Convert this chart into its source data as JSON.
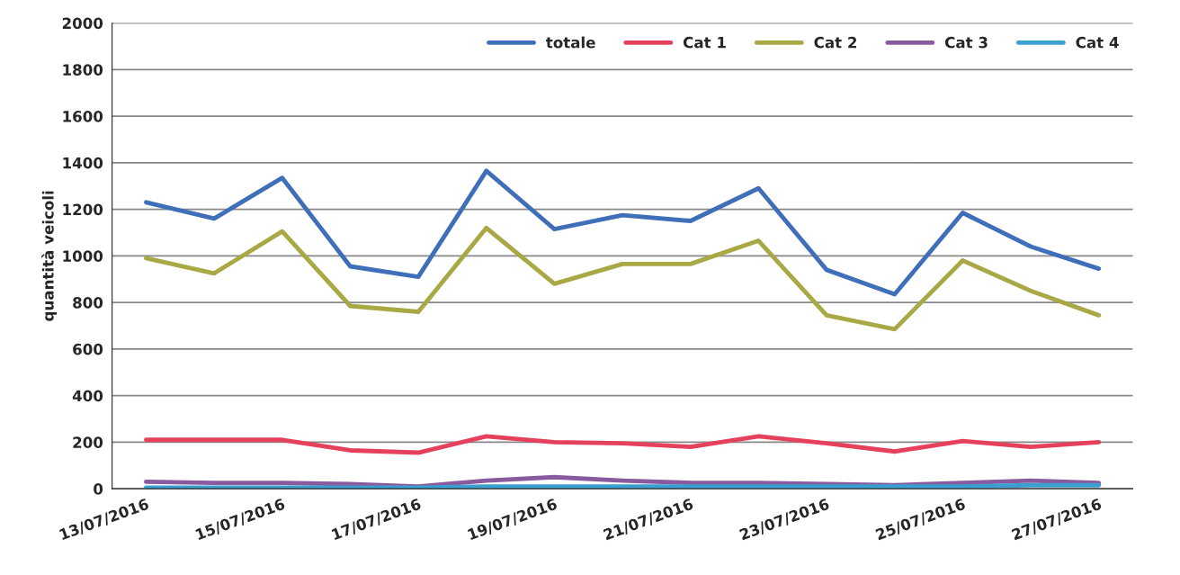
{
  "chart_data": {
    "type": "line",
    "ylabel": "quantità veicoli",
    "categories": [
      "13/07/2016",
      null,
      "15/07/2016",
      null,
      "17/07/2016",
      null,
      "19/07/2016",
      null,
      "21/07/2016",
      null,
      "23/07/2016",
      null,
      "25/07/2016",
      null,
      "27/07/2016"
    ],
    "series": [
      {
        "name": "totale",
        "color": "#3f6fb8",
        "values": [
          1230,
          1160,
          1335,
          955,
          910,
          1365,
          1115,
          1175,
          1150,
          1290,
          940,
          835,
          1185,
          1040,
          945
        ]
      },
      {
        "name": "Cat 1",
        "color": "#e5405c",
        "values": [
          210,
          210,
          210,
          165,
          155,
          225,
          200,
          195,
          180,
          225,
          195,
          160,
          205,
          180,
          200
        ]
      },
      {
        "name": "Cat 2",
        "color": "#a8a844",
        "values": [
          990,
          925,
          1105,
          785,
          760,
          1120,
          880,
          965,
          965,
          1065,
          745,
          685,
          980,
          850,
          745
        ]
      },
      {
        "name": "Cat 3",
        "color": "#8a5a9e",
        "values": [
          30,
          25,
          25,
          20,
          10,
          35,
          50,
          35,
          25,
          25,
          20,
          15,
          25,
          35,
          25
        ]
      },
      {
        "name": "Cat 4",
        "color": "#3b9fcf",
        "values": [
          5,
          5,
          5,
          5,
          5,
          10,
          10,
          10,
          10,
          10,
          10,
          10,
          10,
          15,
          15
        ]
      }
    ],
    "ylim": [
      0,
      2000
    ],
    "yticks": [
      0,
      200,
      400,
      600,
      800,
      1000,
      1200,
      1400,
      1600,
      1800,
      2000
    ],
    "grid": "y",
    "legend": "top right"
  }
}
